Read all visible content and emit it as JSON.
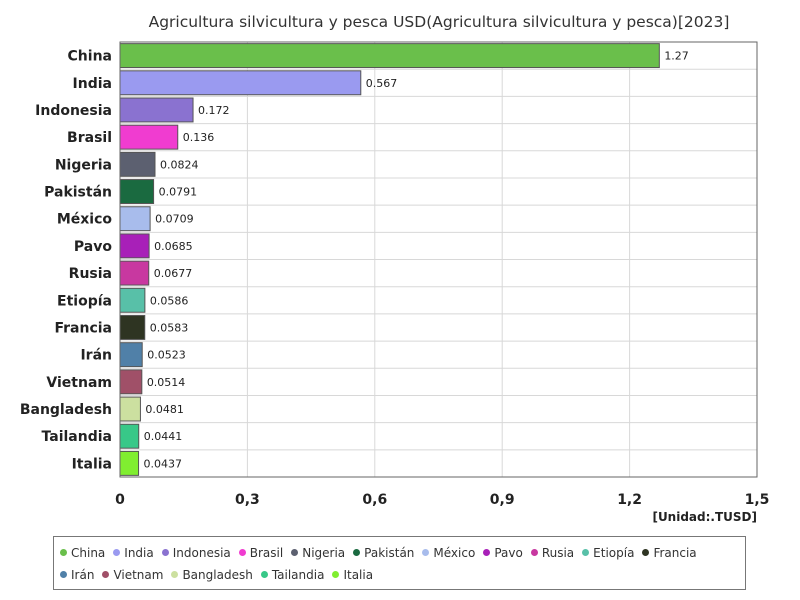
{
  "chart_data": {
    "type": "bar",
    "orientation": "horizontal",
    "title": "Agricultura silvicultura y pesca USD(Agricultura silvicultura y pesca)[2023]",
    "unit_label": "[Unidad:.TUSD]",
    "categories": [
      "China",
      "India",
      "Indonesia",
      "Brasil",
      "Nigeria",
      "Pakistán",
      "México",
      "Pavo",
      "Rusia",
      "Etiopía",
      "Francia",
      "Irán",
      "Vietnam",
      "Bangladesh",
      "Tailandia",
      "Italia"
    ],
    "values": [
      1.27,
      0.567,
      0.172,
      0.136,
      0.0824,
      0.0791,
      0.0709,
      0.0685,
      0.0677,
      0.0586,
      0.0583,
      0.0523,
      0.0514,
      0.0481,
      0.0441,
      0.0437
    ],
    "value_labels": [
      "1.27",
      "0.567",
      "0.172",
      "0.136",
      "0.0824",
      "0.0791",
      "0.0709",
      "0.0685",
      "0.0677",
      "0.0586",
      "0.0583",
      "0.0523",
      "0.0514",
      "0.0481",
      "0.0441",
      "0.0437"
    ],
    "colors": [
      "#6abf4b",
      "#9a9af0",
      "#8a72d0",
      "#f03cd0",
      "#5c6070",
      "#1a6a40",
      "#a8bcec",
      "#a820b8",
      "#c838a0",
      "#58c0a8",
      "#2e3422",
      "#5080a8",
      "#a05068",
      "#cce0a0",
      "#38c888",
      "#80ee30"
    ],
    "xlim": [
      0,
      1.5
    ],
    "xticks": [
      "0",
      "0,3",
      "0,6",
      "0,9",
      "1,2",
      "1,5"
    ],
    "xtick_values": [
      0,
      0.3,
      0.6,
      0.9,
      1.2,
      1.5
    ],
    "grid": true,
    "legend_position": "bottom"
  }
}
